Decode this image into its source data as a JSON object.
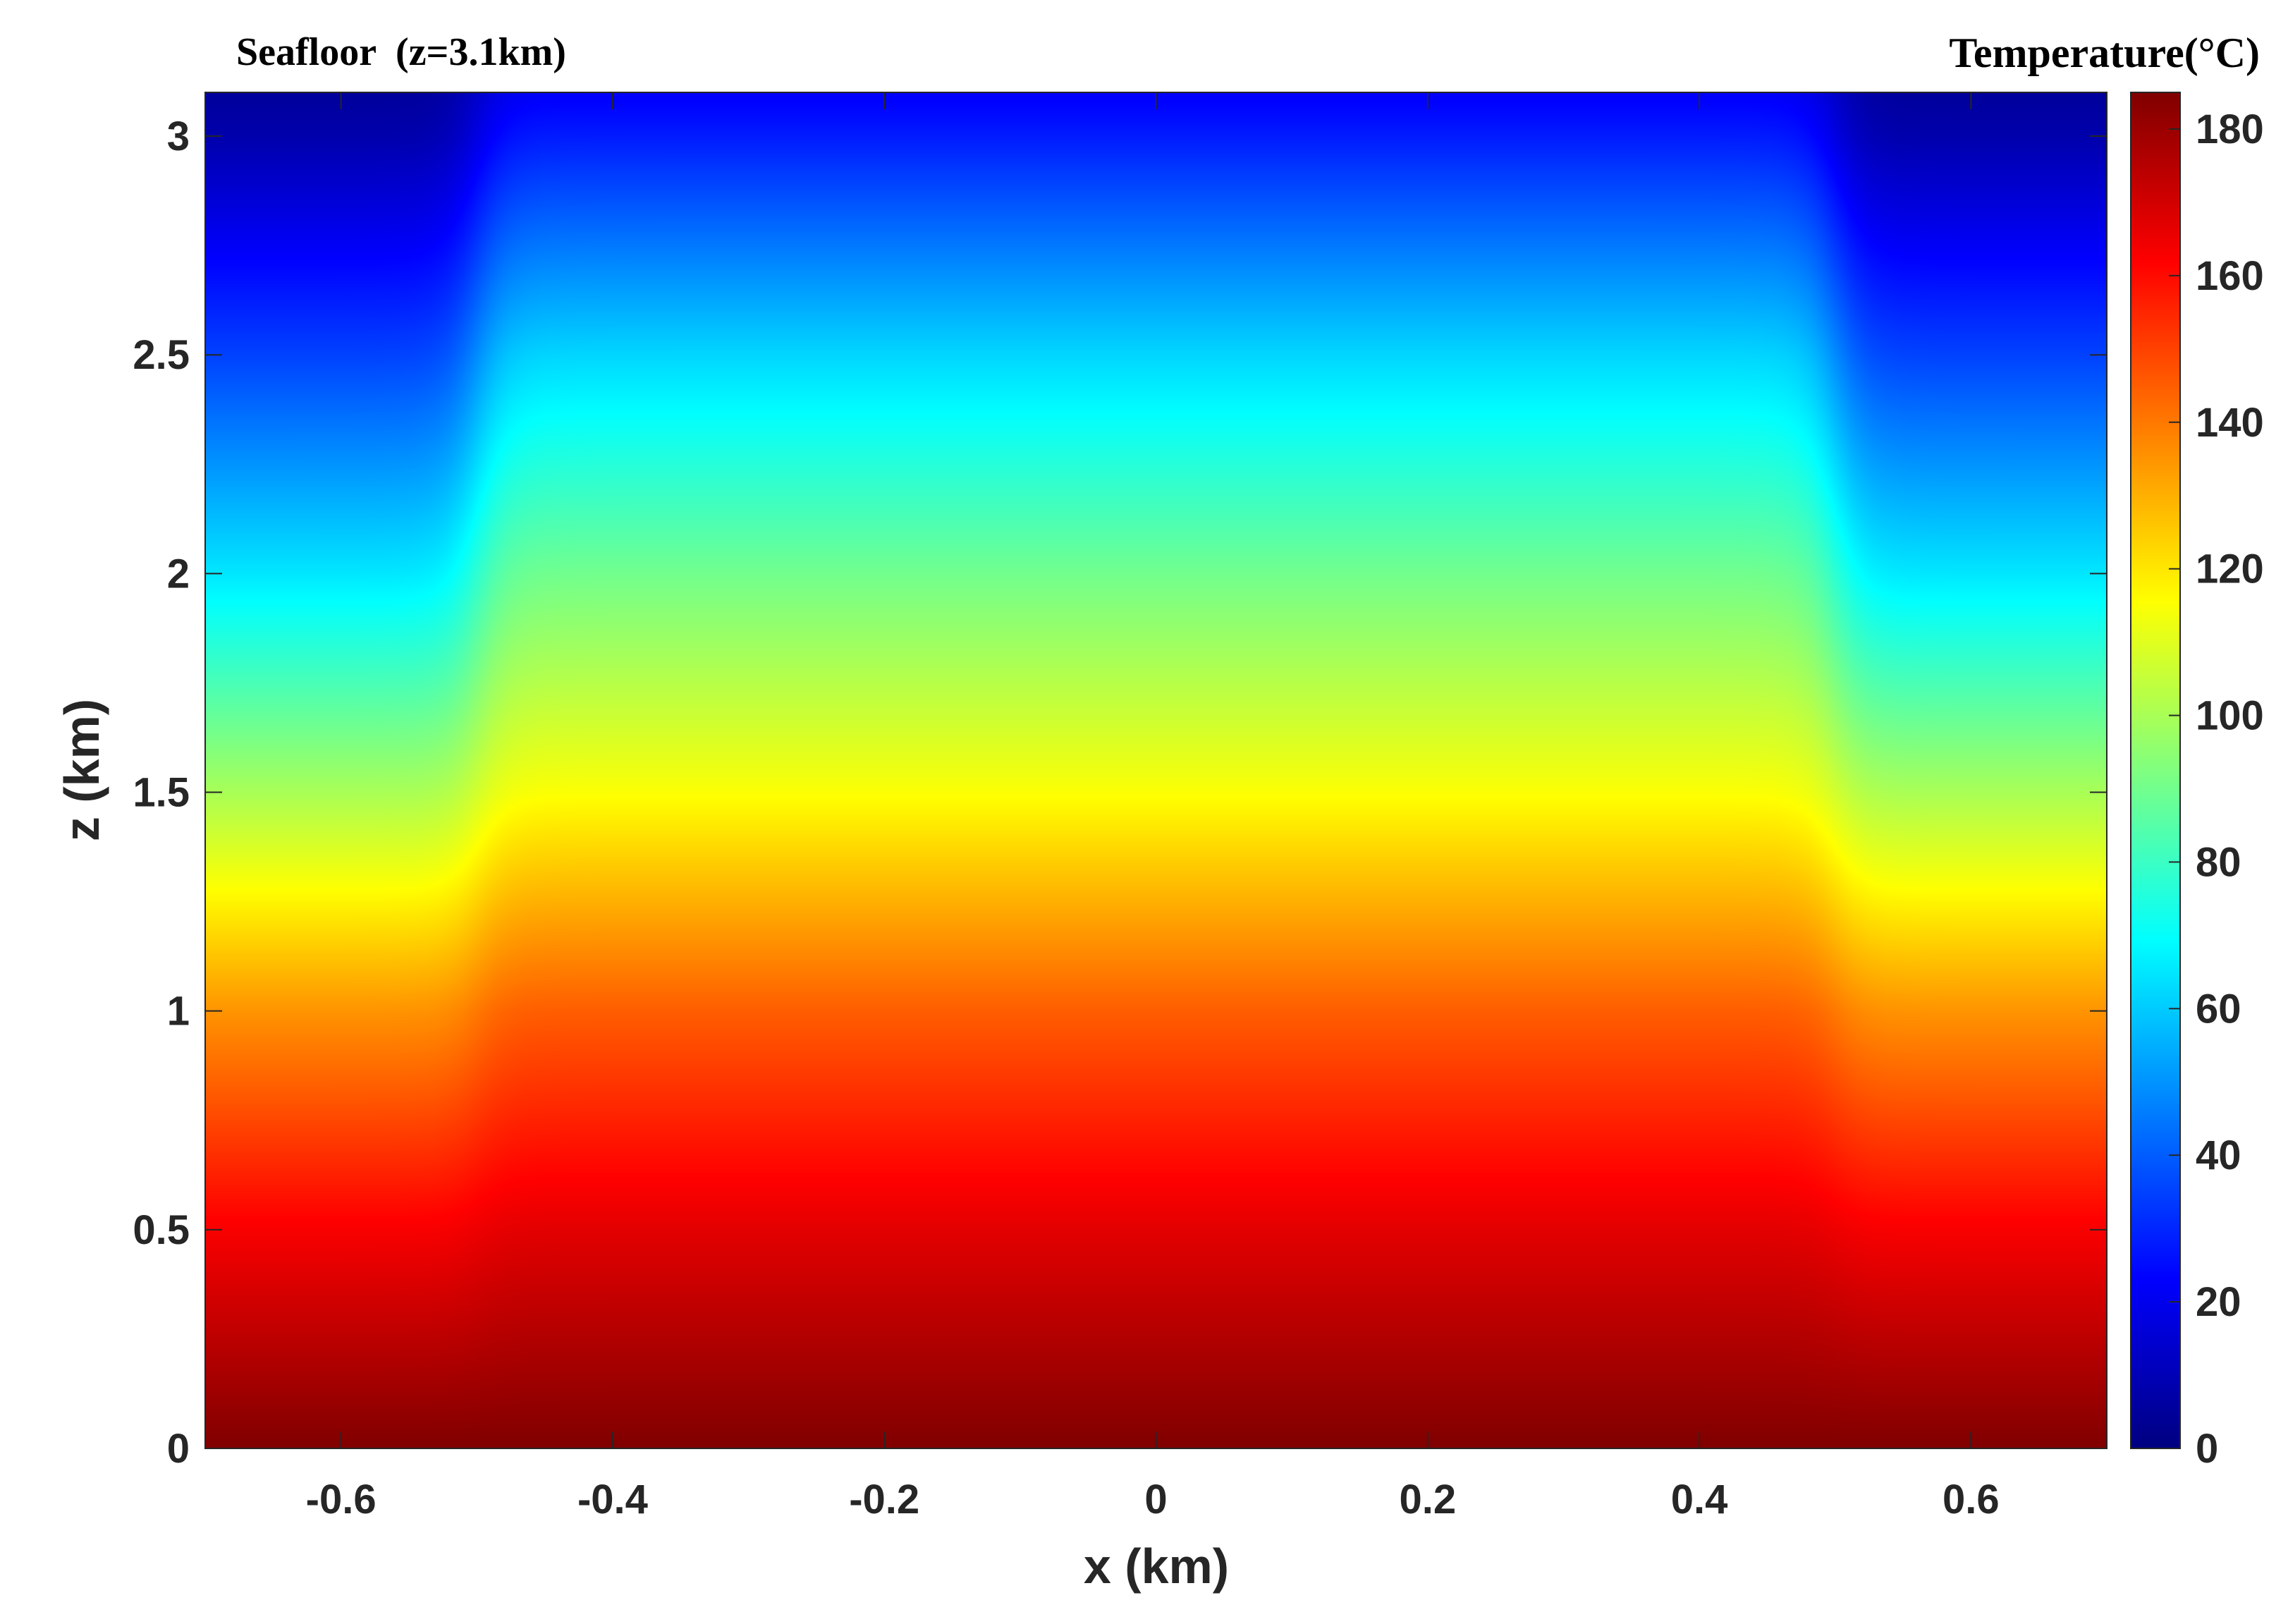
{
  "chart_data": {
    "type": "heatmap",
    "title": "Seafloor  (z=3.1km)",
    "xlabel": "x (km)",
    "ylabel": "z (km)",
    "colorbar_label": "Temperature(°C)",
    "colormap": "jet",
    "xlim": [
      -0.7,
      0.7
    ],
    "ylim": [
      0,
      3.1
    ],
    "clim": [
      0,
      185
    ],
    "x_ticks": [
      -0.6,
      -0.4,
      -0.2,
      0,
      0.2,
      0.4,
      0.6
    ],
    "x_tick_labels": [
      "-0.6",
      "-0.4",
      "-0.2",
      "0",
      "0.2",
      "0.4",
      "0.6"
    ],
    "y_ticks": [
      0,
      0.5,
      1,
      1.5,
      2,
      2.5,
      3
    ],
    "y_tick_labels": [
      "0",
      "0.5",
      "1",
      "1.5",
      "2",
      "2.5",
      "3"
    ],
    "colorbar_ticks": [
      0,
      20,
      40,
      60,
      80,
      100,
      120,
      140,
      160,
      180
    ],
    "colorbar_tick_labels": [
      "0",
      "20",
      "40",
      "60",
      "80",
      "100",
      "120",
      "140",
      "160",
      "180"
    ],
    "field": {
      "central_zone_x": [
        -0.5,
        0.5
      ],
      "central_profile": [
        {
          "z": 0.0,
          "t": 185
        },
        {
          "z": 0.5,
          "t": 167
        },
        {
          "z": 1.0,
          "t": 145
        },
        {
          "z": 1.5,
          "t": 115
        },
        {
          "z": 2.0,
          "t": 90
        },
        {
          "z": 2.5,
          "t": 62
        },
        {
          "z": 3.0,
          "t": 28
        },
        {
          "z": 3.1,
          "t": 22
        }
      ],
      "outer_profile": [
        {
          "z": 0.0,
          "t": 185
        },
        {
          "z": 0.5,
          "t": 163
        },
        {
          "z": 1.0,
          "t": 135
        },
        {
          "z": 1.5,
          "t": 100
        },
        {
          "z": 2.0,
          "t": 65
        },
        {
          "z": 2.5,
          "t": 35
        },
        {
          "z": 3.0,
          "t": 8
        },
        {
          "z": 3.1,
          "t": 5
        }
      ]
    }
  }
}
